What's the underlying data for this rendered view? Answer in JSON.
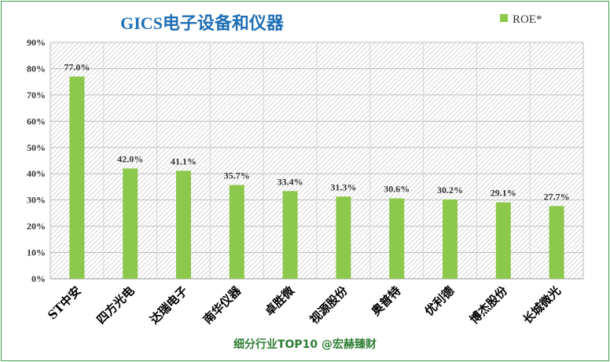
{
  "chart_data": {
    "type": "bar",
    "title": "GICS电子设备和仪器",
    "categories": [
      "ST中安",
      "四方光电",
      "达瑞电子",
      "南华仪器",
      "卓胜微",
      "视源股份",
      "奥普特",
      "优利德",
      "博杰股份",
      "长城微光"
    ],
    "series": [
      {
        "name": "ROE*",
        "values": [
          77.0,
          42.0,
          41.1,
          35.7,
          33.4,
          31.3,
          30.6,
          30.2,
          29.1,
          27.7
        ],
        "labels": [
          "77.0%",
          "42.0%",
          "41.1%",
          "35.7%",
          "33.4%",
          "31.3%",
          "30.6%",
          "30.2%",
          "29.1%",
          "27.7%"
        ]
      }
    ],
    "y_ticks": [
      "0%",
      "10%",
      "20%",
      "30%",
      "40%",
      "50%",
      "60%",
      "70%",
      "80%",
      "90%"
    ],
    "ylim": [
      0,
      90
    ],
    "grid": true,
    "legend_position": "top-right",
    "footer": "细分行业TOP10 @宏赫臻财",
    "colors": {
      "bar": "#8cc84b",
      "title": "#1f6fb5",
      "footer": "#2e7d32",
      "frame": "#3aa04a"
    }
  }
}
